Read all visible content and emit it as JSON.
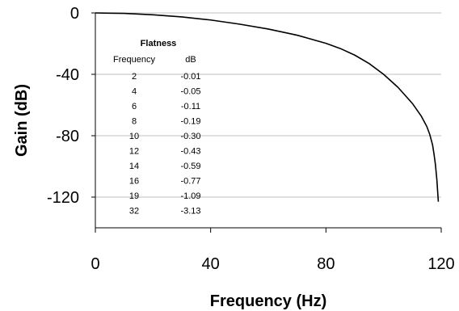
{
  "chart_data": {
    "type": "line",
    "title": "",
    "xlabel": "Frequency (Hz)",
    "ylabel": "Gain (dB)",
    "xlim": [
      0,
      120
    ],
    "ylim": [
      -140,
      0
    ],
    "xticks": [
      0,
      40,
      80,
      120
    ],
    "yticks": [
      0,
      -40,
      -80,
      -120
    ],
    "xtick_labels": [
      "0",
      "40",
      "80",
      "120"
    ],
    "ytick_labels": [
      "0",
      "-40",
      "-80",
      "-120"
    ],
    "grid": "horizontal",
    "legend": "none",
    "line_color": "#000000",
    "grid_color": "#c0c0c0",
    "series": [
      {
        "x": [
          0,
          10,
          20,
          30,
          40,
          50,
          60,
          70,
          80,
          85,
          90,
          95,
          100,
          105,
          110,
          113,
          115,
          116,
          117,
          117.5,
          118,
          118.5,
          119
        ],
        "y": [
          0,
          -0.3,
          -1.2,
          -2.6,
          -4.6,
          -7.3,
          -10.5,
          -14.5,
          -19.8,
          -23.2,
          -27.5,
          -33,
          -40,
          -48.5,
          -59,
          -67,
          -74,
          -79,
          -86,
          -92,
          -99,
          -109,
          -123
        ]
      }
    ],
    "inset_table": {
      "title": "Flatness",
      "columns": [
        "Frequency",
        "dB"
      ],
      "rows": [
        [
          "2",
          "-0.01"
        ],
        [
          "4",
          "-0.05"
        ],
        [
          "6",
          "-0.11"
        ],
        [
          "8",
          "-0.19"
        ],
        [
          "10",
          "-0.30"
        ],
        [
          "12",
          "-0.43"
        ],
        [
          "14",
          "-0.59"
        ],
        [
          "16",
          "-0.77"
        ],
        [
          "19",
          "-1.09"
        ],
        [
          "32",
          "-3.13"
        ]
      ]
    }
  }
}
